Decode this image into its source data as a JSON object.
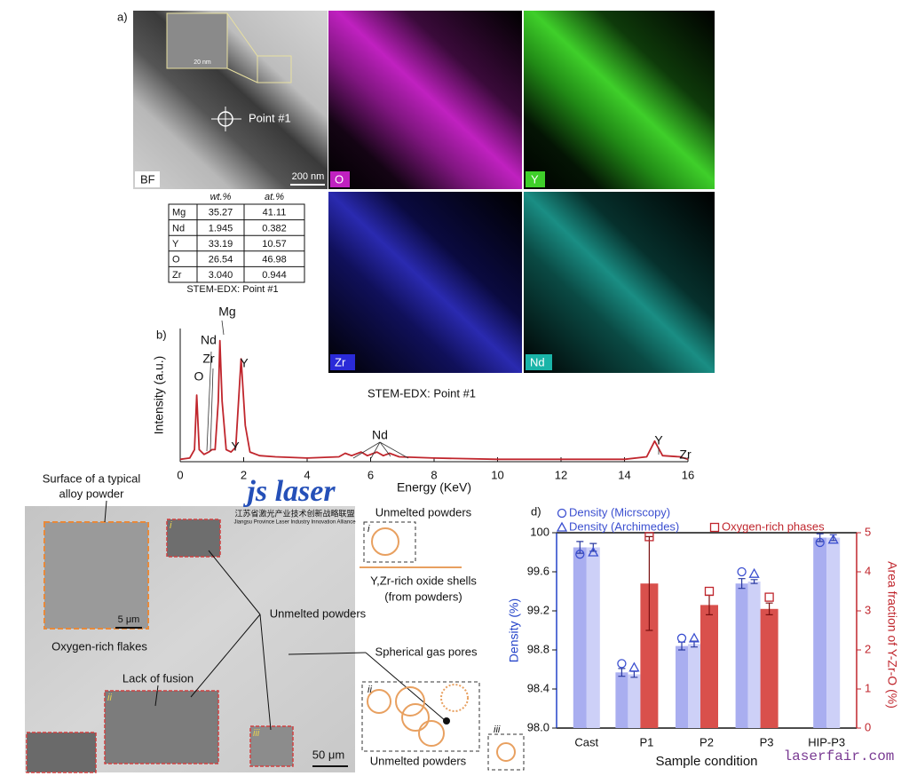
{
  "panel_a": {
    "label": "a)",
    "image_labels": [
      "BF",
      "O",
      "Y",
      "Zr",
      "Nd"
    ],
    "scale_bar": "200 nm",
    "inset_scale": "20 nm",
    "point": "Point #1",
    "table": {
      "header": [
        "wt.%",
        "at.%"
      ],
      "rows": [
        [
          "Mg",
          "35.27",
          "41.11"
        ],
        [
          "Nd",
          "1.945",
          "0.382"
        ],
        [
          "Y",
          "33.19",
          "10.57"
        ],
        [
          "O",
          "26.54",
          "46.98"
        ],
        [
          "Zr",
          "3.040",
          "0.944"
        ]
      ]
    },
    "table_caption": "STEM-EDX: Point #1"
  },
  "chart_data": [
    {
      "type": "line",
      "label": "b)",
      "subtitle": "STEM-EDX: Point #1",
      "x_label": "Energy (KeV)",
      "y_label": "Intensity (a.u.)",
      "x": [
        0,
        0.3,
        0.45,
        0.52,
        0.6,
        0.75,
        0.9,
        1.0,
        1.1,
        1.2,
        1.25,
        1.32,
        1.45,
        1.6,
        1.75,
        1.92,
        2.05,
        2.2,
        2.5,
        3,
        4,
        5,
        5.2,
        5.4,
        5.7,
        5.9,
        6.2,
        6.4,
        6.6,
        6.9,
        8,
        10,
        12,
        14,
        14.7,
        14.95,
        15.2,
        15.75,
        16
      ],
      "series": [
        {
          "color": "#c0262d",
          "values": [
            0.02,
            0.03,
            0.1,
            0.55,
            0.1,
            0.06,
            0.08,
            0.1,
            0.1,
            0.5,
            1.0,
            0.5,
            0.1,
            0.08,
            0.12,
            0.85,
            0.3,
            0.08,
            0.05,
            0.04,
            0.03,
            0.04,
            0.07,
            0.05,
            0.08,
            0.05,
            0.08,
            0.05,
            0.07,
            0.04,
            0.03,
            0.02,
            0.02,
            0.02,
            0.04,
            0.17,
            0.05,
            0.04,
            0.02
          ]
        }
      ],
      "xlim": [
        0,
        16
      ],
      "xticks": [
        0,
        2,
        4,
        6,
        8,
        10,
        12,
        14,
        16
      ],
      "ylim": [
        0,
        1.1
      ],
      "annotations": [
        "O",
        "Nd",
        "Zr",
        "Mg",
        "Y",
        "Y",
        "Nd",
        "Y",
        "Zr"
      ]
    },
    {
      "type": "bar",
      "label": "d)",
      "x_label": "Sample condition",
      "y_label": "Density (%)",
      "y2_label": "Area fraction of Y-Zr-O (%)",
      "categories": [
        "Cast",
        "P1",
        "P2",
        "P3",
        "HIP-P3"
      ],
      "ylim": [
        98,
        100
      ],
      "yticks": [
        {
          "value": 98,
          "label": "98.0"
        },
        98.4,
        98.8,
        99.2,
        99.6,
        100
      ],
      "y2lim": [
        0,
        5
      ],
      "y2ticks": [
        0,
        1,
        2,
        3,
        4,
        5
      ],
      "series": [
        {
          "name": "Density (Micrscopy)",
          "color": "#a9aef0",
          "marker_color": "#3b4fd0",
          "marker": "circle",
          "values": [
            99.85,
            98.57,
            98.84,
            99.48,
            99.95
          ],
          "errors": [
            0.06,
            0.04,
            0.04,
            0.05,
            0.04
          ],
          "points": [
            99.78,
            98.66,
            98.92,
            99.6,
            99.9
          ]
        },
        {
          "name": "Density (Archimedes)",
          "color": "#cdd0f7",
          "marker_color": "#3b4fd0",
          "marker": "triangle",
          "values": [
            99.85,
            98.55,
            98.86,
            99.5,
            99.95
          ],
          "errors": [
            0.04,
            0.03,
            0.03,
            0.02,
            0.03
          ],
          "points": [
            99.8,
            98.62,
            98.92,
            99.58,
            99.93
          ]
        },
        {
          "name": "Oxygen-rich phases",
          "color": "#d9504c",
          "marker_color": "#c0262d",
          "marker": "square",
          "axis": "y2",
          "values": [
            null,
            3.7,
            3.15,
            3.05,
            null
          ],
          "errors": [
            null,
            1.2,
            0.25,
            0.15,
            null
          ],
          "points": [
            null,
            4.9,
            3.5,
            3.35,
            null
          ]
        }
      ]
    }
  ],
  "panel_c": {
    "label": "c)",
    "surface": [
      "Surface of a typical",
      "alloy powder"
    ],
    "flakes": "Oxygen-rich flakes",
    "inset_scale": "5 μm",
    "lack_of_fusion": "Lack of fusion",
    "unmelted": "Unmelted powders",
    "pores": "Spherical gas pores",
    "scale_bar": "50 μm",
    "inset_marks": [
      "i",
      "ii",
      "iii"
    ],
    "legend_unmelted_top": "Unmelted powders",
    "shell": [
      "Y,Zr-rich oxide shells",
      "(from powders)"
    ],
    "legend_unmelted_bottom": "Unmelted powders"
  },
  "watermark": {
    "logo": "js laser",
    "name_cn": "江苏省激光产业技术创新战略联盟",
    "name_en": "Jiangsu Province Laser Industry Innovation Alliance",
    "site": "laserfair.com"
  }
}
